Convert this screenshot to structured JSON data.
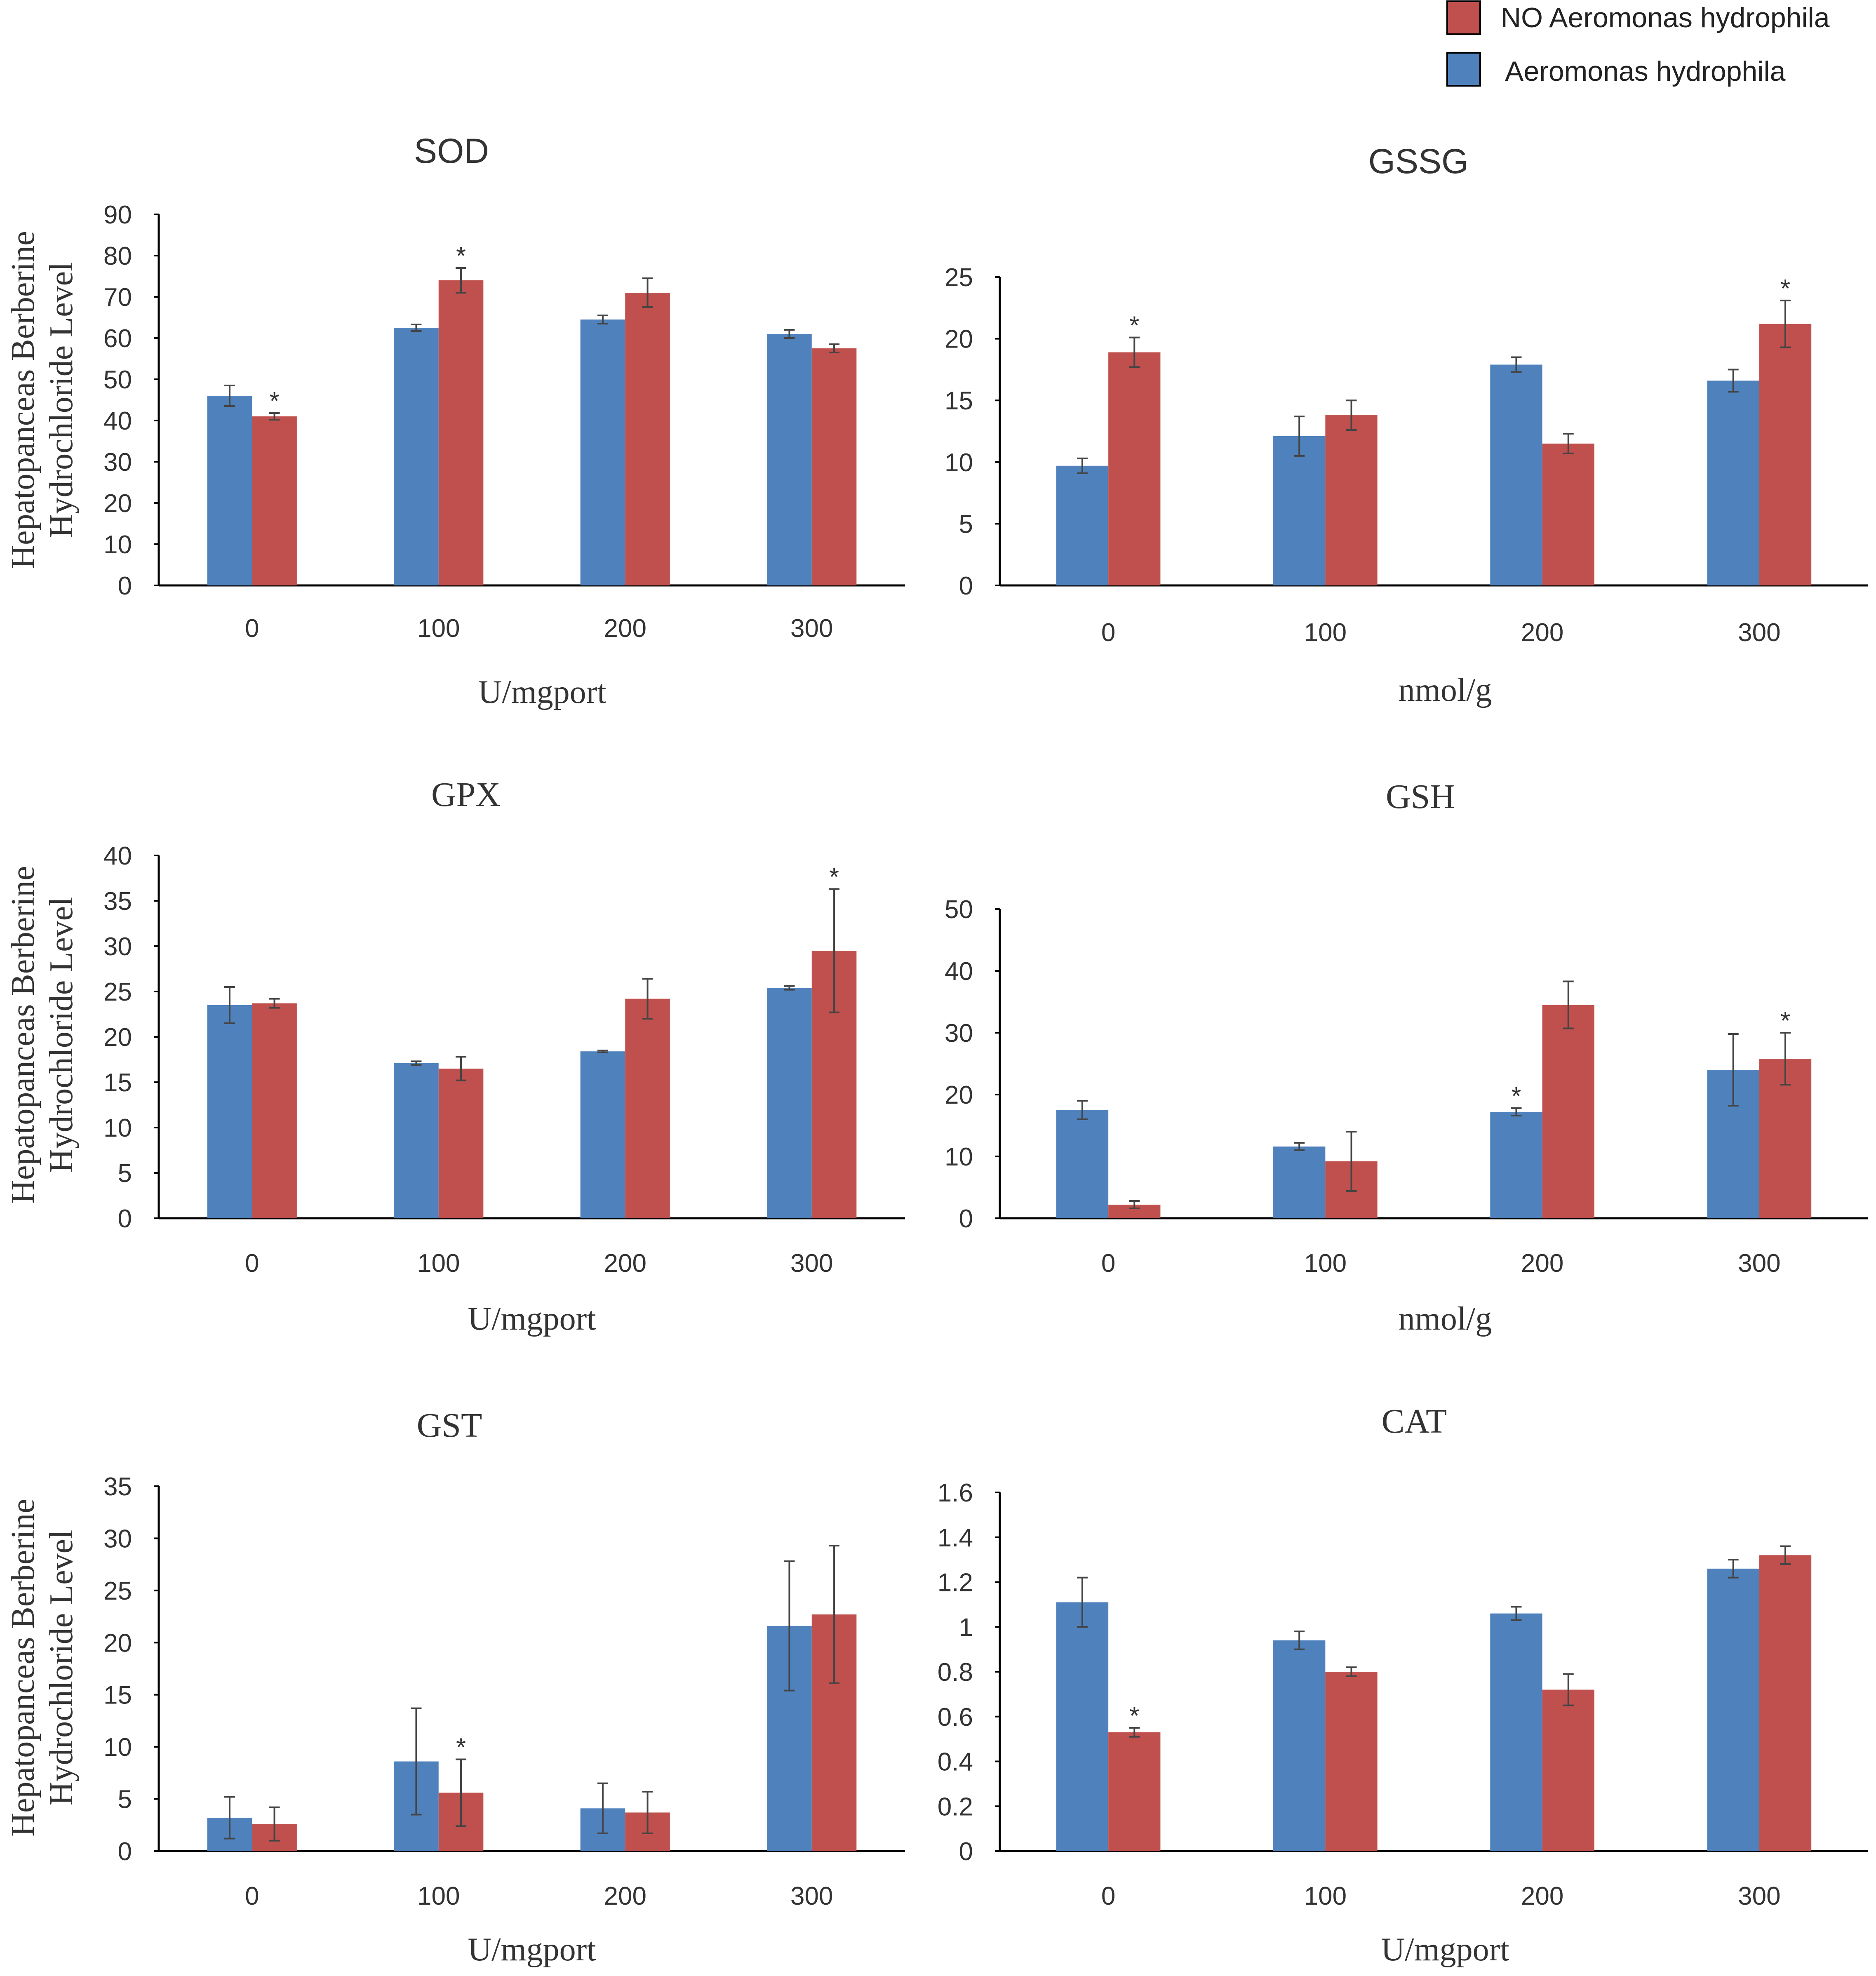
{
  "legend": {
    "position": "top-right",
    "items": [
      {
        "label": "NO Aeromonas hydrophila",
        "color": "#c0504d"
      },
      {
        "label": "Aeromonas hydrophila",
        "color": "#4f81bd"
      }
    ]
  },
  "shared_ylabel": [
    "Hepatopanceas Berberine",
    "Hydrochloride Level"
  ],
  "chart_data": [
    {
      "type": "bar",
      "title": "SOD",
      "xlabel": "U/mgport",
      "ylabel": "Hepatopanceas Berberine Hydrochloride Level",
      "categories": [
        "0",
        "100",
        "200",
        "300"
      ],
      "ylim": [
        0,
        90
      ],
      "yticks": [
        "0",
        "10",
        "20",
        "30",
        "40",
        "50",
        "60",
        "70",
        "80",
        "90"
      ],
      "series": [
        {
          "name": "Aeromonas hydrophila",
          "color": "#4f81bd",
          "values": [
            46,
            62.5,
            64.5,
            61
          ],
          "errors": [
            2.5,
            0.8,
            1,
            1
          ],
          "stars": [
            "",
            "",
            "",
            ""
          ]
        },
        {
          "name": "NO Aeromonas hydrophila",
          "color": "#c0504d",
          "values": [
            41,
            74,
            71,
            57.5
          ],
          "errors": [
            0.8,
            3,
            3.5,
            1
          ],
          "stars": [
            "*",
            "*",
            "",
            ""
          ]
        }
      ]
    },
    {
      "type": "bar",
      "title": "GSSG",
      "xlabel": "nmol/g",
      "ylabel": "",
      "categories": [
        "0",
        "100",
        "200",
        "300"
      ],
      "ylim": [
        0,
        25
      ],
      "yticks": [
        "0",
        "5",
        "10",
        "15",
        "20",
        "25"
      ],
      "series": [
        {
          "name": "Aeromonas hydrophila",
          "color": "#4f81bd",
          "values": [
            9.7,
            12.1,
            17.9,
            16.6
          ],
          "errors": [
            0.6,
            1.6,
            0.6,
            0.9
          ],
          "stars": [
            "",
            "",
            "",
            ""
          ]
        },
        {
          "name": "NO Aeromonas hydrophila",
          "color": "#c0504d",
          "values": [
            18.9,
            13.8,
            11.5,
            21.2
          ],
          "errors": [
            1.2,
            1.2,
            0.8,
            1.9
          ],
          "stars": [
            "*",
            "",
            "",
            "*"
          ]
        }
      ]
    },
    {
      "type": "bar",
      "title": "GPX",
      "xlabel": "U/mgport",
      "ylabel": "Hepatopanceas Berberine Hydrochloride Level",
      "categories": [
        "0",
        "100",
        "200",
        "300"
      ],
      "ylim": [
        0,
        40
      ],
      "yticks": [
        "0",
        "5",
        "10",
        "15",
        "20",
        "25",
        "30",
        "35",
        "40"
      ],
      "series": [
        {
          "name": "Aeromonas hydrophila",
          "color": "#4f81bd",
          "values": [
            23.5,
            17.1,
            18.4,
            25.4
          ],
          "errors": [
            2,
            0.2,
            0.1,
            0.2
          ],
          "stars": [
            "",
            "",
            "",
            ""
          ]
        },
        {
          "name": "NO Aeromonas hydrophila",
          "color": "#c0504d",
          "values": [
            23.7,
            16.5,
            24.2,
            29.5
          ],
          "errors": [
            0.5,
            1.3,
            2.2,
            6.8
          ],
          "stars": [
            "",
            "",
            "",
            "*"
          ]
        }
      ]
    },
    {
      "type": "bar",
      "title": "GSH",
      "xlabel": "nmol/g",
      "ylabel": "",
      "categories": [
        "0",
        "100",
        "200",
        "300"
      ],
      "ylim": [
        0,
        50
      ],
      "yticks": [
        "0",
        "10",
        "20",
        "30",
        "40",
        "50"
      ],
      "series": [
        {
          "name": "Aeromonas hydrophila",
          "color": "#4f81bd",
          "values": [
            17.5,
            11.6,
            17.2,
            24
          ],
          "errors": [
            1.5,
            0.6,
            0.6,
            5.8
          ],
          "stars": [
            "",
            "",
            "*",
            ""
          ]
        },
        {
          "name": "NO Aeromonas hydrophila",
          "color": "#c0504d",
          "values": [
            2.2,
            9.2,
            34.5,
            25.8
          ],
          "errors": [
            0.6,
            4.8,
            3.8,
            4.2
          ],
          "stars": [
            "",
            "",
            "",
            "*"
          ]
        }
      ]
    },
    {
      "type": "bar",
      "title": "GST",
      "xlabel": "U/mgport",
      "ylabel": "Hepatopanceas Berberine Hydrochloride Level",
      "categories": [
        "0",
        "100",
        "200",
        "300"
      ],
      "ylim": [
        0,
        35
      ],
      "yticks": [
        "0",
        "5",
        "10",
        "15",
        "20",
        "25",
        "30",
        "35"
      ],
      "series": [
        {
          "name": "Aeromonas hydrophila",
          "color": "#4f81bd",
          "values": [
            3.2,
            8.6,
            4.1,
            21.6
          ],
          "errors": [
            2,
            5.1,
            2.4,
            6.2
          ],
          "stars": [
            "",
            "",
            "",
            ""
          ]
        },
        {
          "name": "NO Aeromonas hydrophila",
          "color": "#c0504d",
          "values": [
            2.6,
            5.6,
            3.7,
            22.7
          ],
          "errors": [
            1.6,
            3.2,
            2,
            6.6
          ],
          "stars": [
            "",
            "*",
            "",
            ""
          ]
        }
      ]
    },
    {
      "type": "bar",
      "title": "CAT",
      "xlabel": "U/mgport",
      "ylabel": "",
      "categories": [
        "0",
        "100",
        "200",
        "300"
      ],
      "ylim": [
        0,
        1.6
      ],
      "yticks": [
        "0",
        "0.2",
        "0.4",
        "0.6",
        "0.8",
        "1",
        "1.2",
        "1.4",
        "1.6"
      ],
      "series": [
        {
          "name": "Aeromonas hydrophila",
          "color": "#4f81bd",
          "values": [
            1.11,
            0.94,
            1.06,
            1.26
          ],
          "errors": [
            0.11,
            0.04,
            0.03,
            0.04
          ],
          "stars": [
            "",
            "",
            "",
            ""
          ]
        },
        {
          "name": "NO Aeromonas hydrophila",
          "color": "#c0504d",
          "values": [
            0.53,
            0.8,
            0.72,
            1.32
          ],
          "errors": [
            0.02,
            0.02,
            0.07,
            0.04
          ],
          "stars": [
            "*",
            "",
            "",
            ""
          ]
        }
      ]
    }
  ]
}
